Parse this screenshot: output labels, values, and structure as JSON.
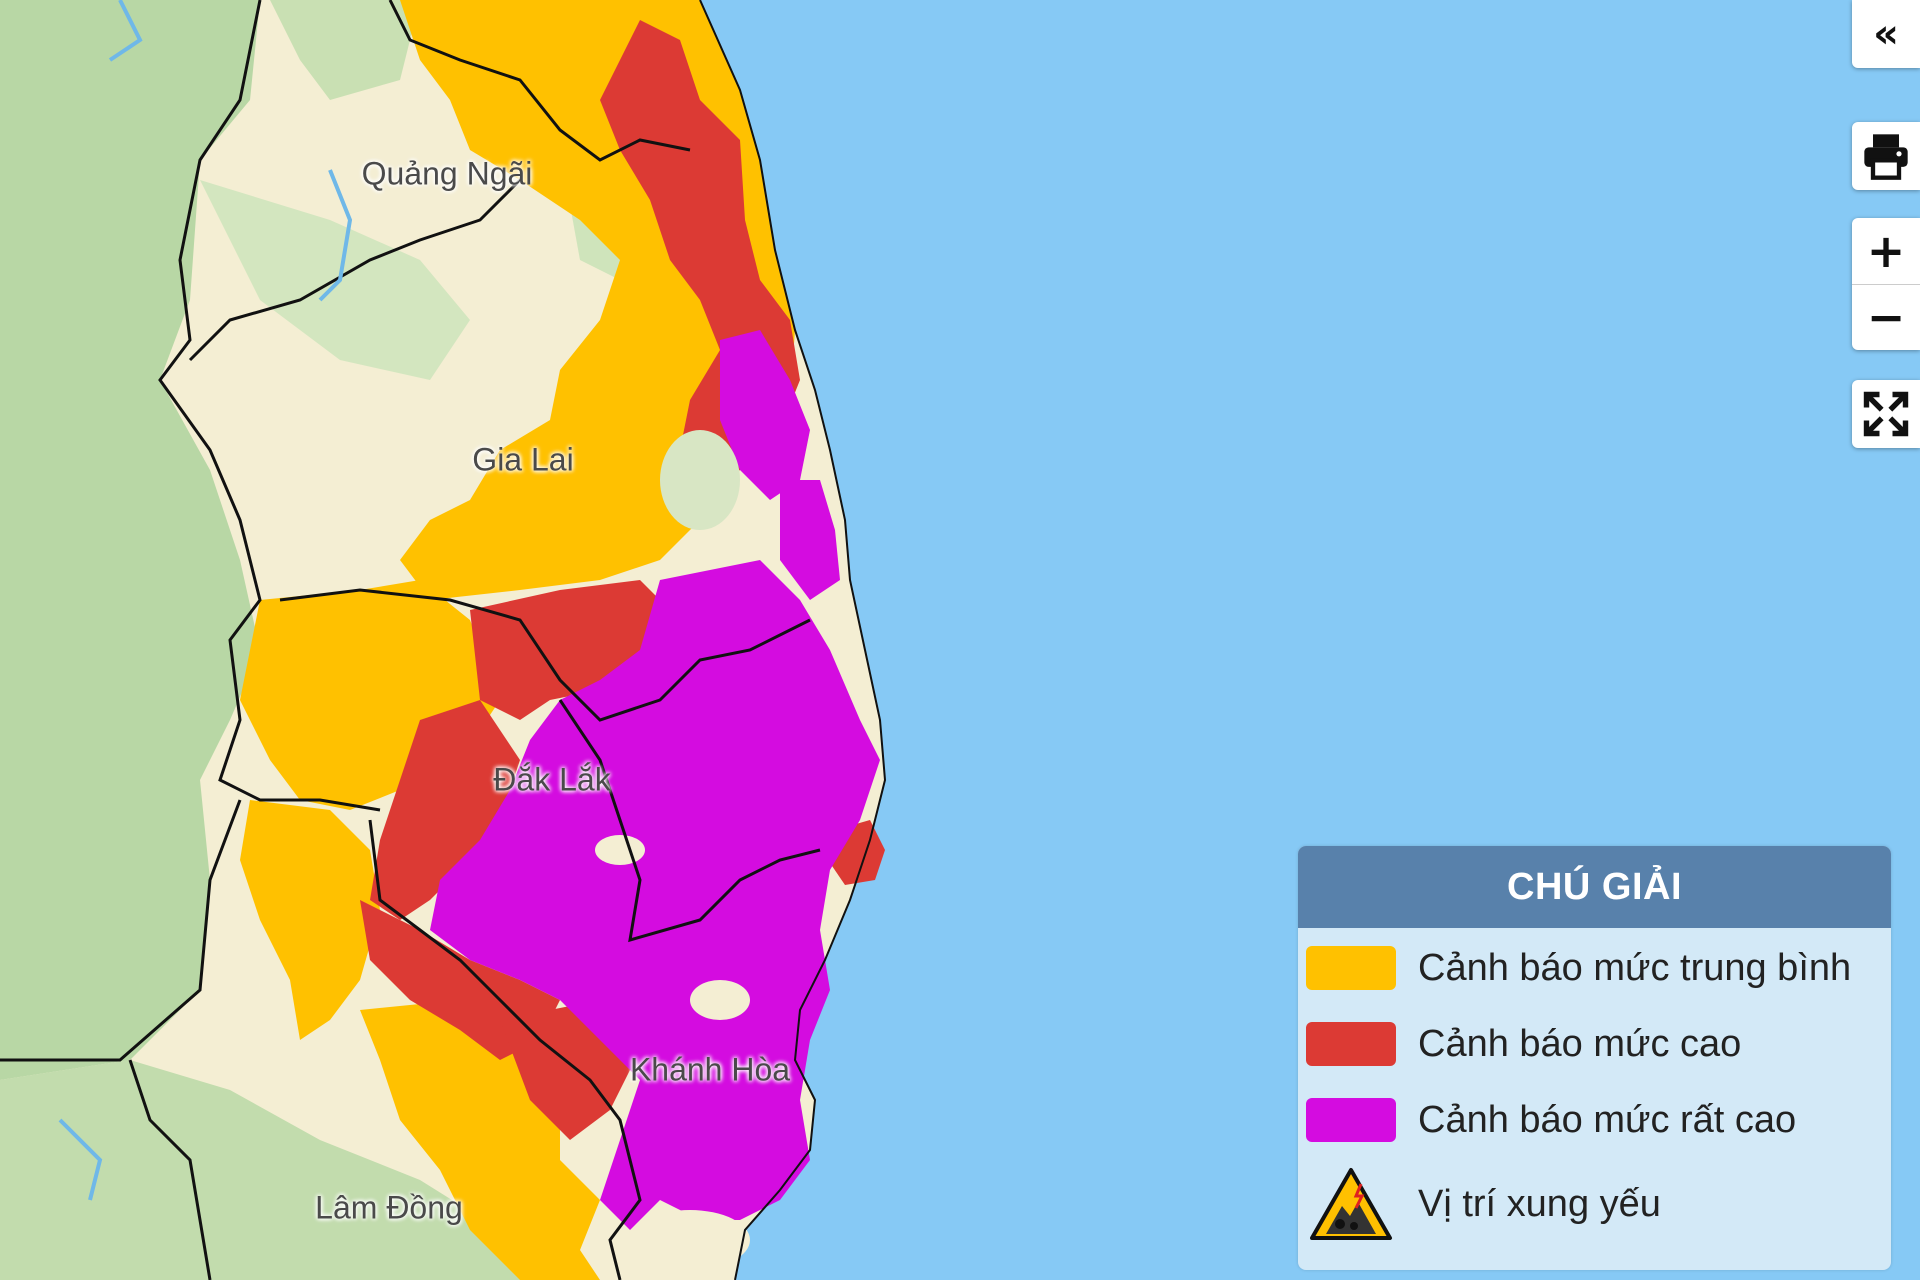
{
  "map": {
    "places": [
      {
        "id": "quang-ngai",
        "name": "Quảng Ngãi"
      },
      {
        "id": "gia-lai",
        "name": "Gia Lai"
      },
      {
        "id": "dak-lak",
        "name": "Đắk Lắk"
      },
      {
        "id": "khanh-hoa",
        "name": "Khánh Hòa"
      },
      {
        "id": "lam-dong",
        "name": "Lâm Đồng"
      }
    ],
    "colors": {
      "sea": "#86c9f5",
      "land": "#f4eed3",
      "forest": "#b9d8a7",
      "warning_medium": "#ffc100",
      "warning_high": "#dc3a34",
      "warning_very_high": "#d40ce0"
    }
  },
  "controls": {
    "collapse_icon": "double-chevron-left-icon",
    "print_icon": "printer-icon",
    "zoom_in_icon": "plus-icon",
    "zoom_out_icon": "minus-icon",
    "fullscreen_icon": "fullscreen-icon"
  },
  "legend": {
    "title": "CHÚ GIẢI",
    "items": [
      {
        "label": "Cảnh báo mức trung bình",
        "color": "#ffc100"
      },
      {
        "label": "Cảnh báo mức cao",
        "color": "#dc3a34"
      },
      {
        "label": "Cảnh báo mức rất cao",
        "color": "#d40ce0"
      },
      {
        "label": "Vị trí xung yếu",
        "icon": "landslide-warning-icon"
      }
    ]
  }
}
